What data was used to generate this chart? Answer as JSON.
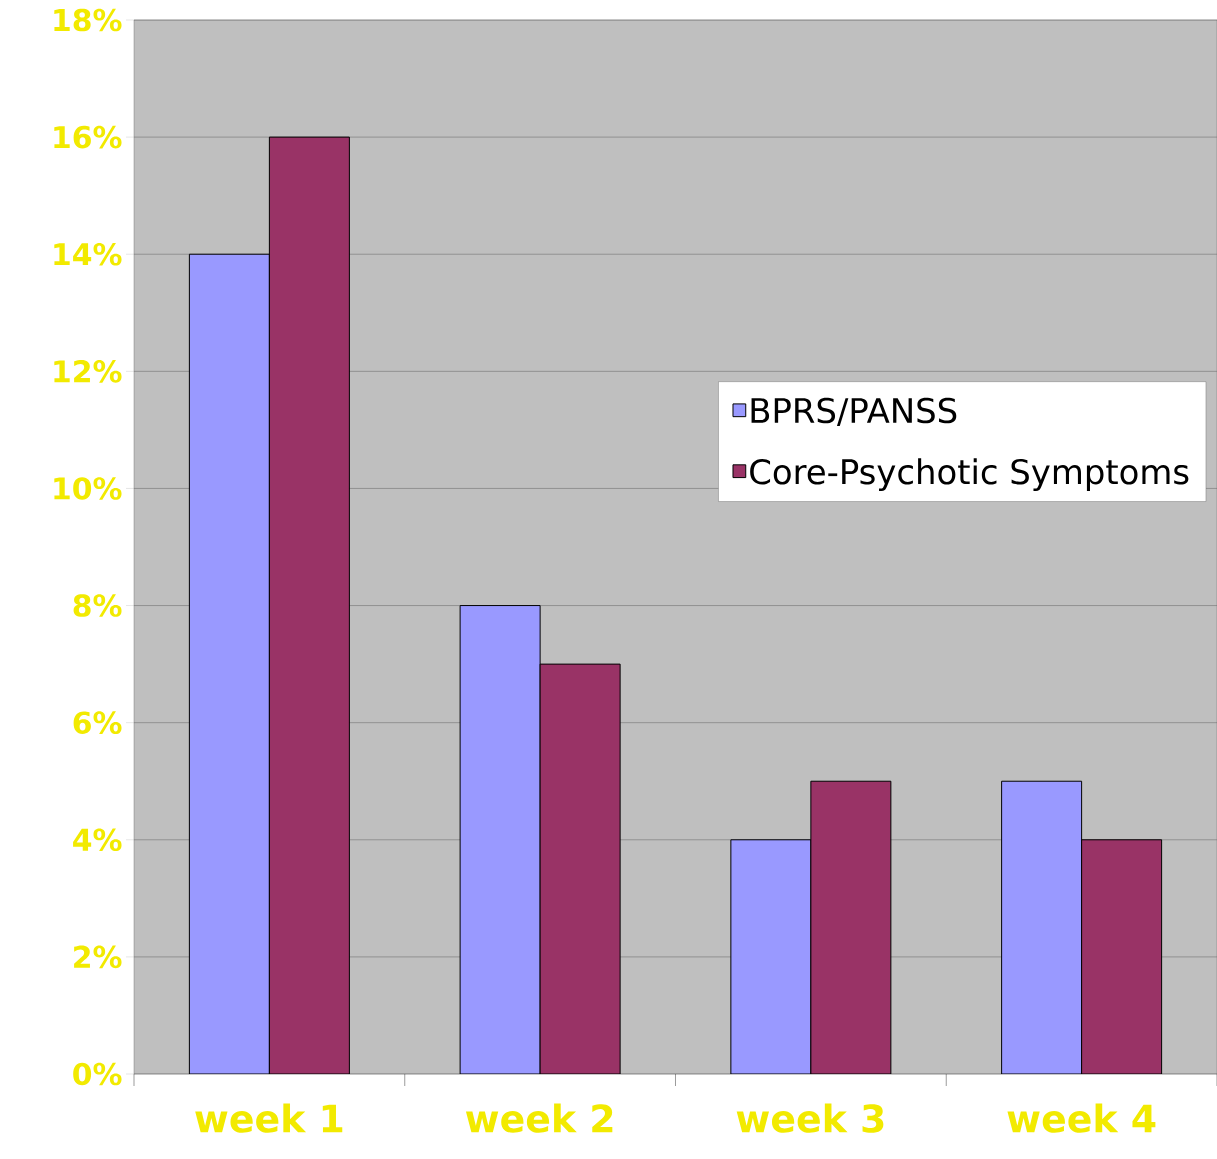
{
  "chart_data": {
    "type": "bar",
    "categories": [
      "week 1",
      "week 2",
      "week 3",
      "week 4"
    ],
    "series": [
      {
        "name": "BPRS/PANSS",
        "color": "#9999ff",
        "values": [
          14,
          8,
          4,
          5
        ]
      },
      {
        "name": "Core-Psychotic Symptoms",
        "color": "#993366",
        "values": [
          16,
          7,
          5,
          4
        ]
      }
    ],
    "ylim": [
      0,
      18
    ],
    "yticks": [
      {
        "value": 0,
        "label": "0%"
      },
      {
        "value": 2,
        "label": "2%"
      },
      {
        "value": 4,
        "label": "4%"
      },
      {
        "value": 6,
        "label": "6%"
      },
      {
        "value": 8,
        "label": "8%"
      },
      {
        "value": 10,
        "label": "10%"
      },
      {
        "value": 12,
        "label": "12%"
      },
      {
        "value": 14,
        "label": "14%"
      },
      {
        "value": 16,
        "label": "16%"
      },
      {
        "value": 18,
        "label": "18%"
      }
    ],
    "grid": "y",
    "legend": "right"
  }
}
